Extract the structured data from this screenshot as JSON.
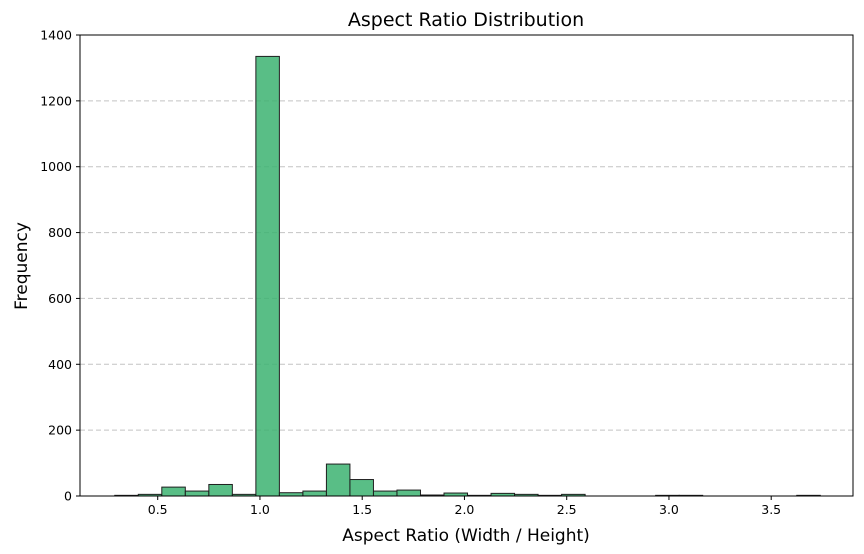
{
  "chart_data": {
    "type": "bar",
    "title": "Aspect Ratio Distribution",
    "xlabel": "Aspect Ratio (Width / Height)",
    "ylabel": "Frequency",
    "xlim": [
      0.12,
      3.9
    ],
    "ylim": [
      0,
      1400
    ],
    "xticks": [
      0.5,
      1.0,
      1.5,
      2.0,
      2.5,
      3.0,
      3.5
    ],
    "xtick_labels": [
      "0.5",
      "1.0",
      "1.5",
      "2.0",
      "2.5",
      "3.0",
      "3.5"
    ],
    "yticks": [
      0,
      200,
      400,
      600,
      800,
      1000,
      1200,
      1400
    ],
    "ytick_labels": [
      "0",
      "200",
      "400",
      "600",
      "800",
      "1000",
      "1200",
      "1400"
    ],
    "grid": "y dashed",
    "bar_color": "#3cb371",
    "bar_edge_color": "#1f1f1f",
    "bins": [
      {
        "start": 0.29,
        "end": 0.405,
        "count": 2
      },
      {
        "start": 0.405,
        "end": 0.52,
        "count": 5
      },
      {
        "start": 0.52,
        "end": 0.635,
        "count": 27
      },
      {
        "start": 0.635,
        "end": 0.75,
        "count": 15
      },
      {
        "start": 0.75,
        "end": 0.865,
        "count": 35
      },
      {
        "start": 0.865,
        "end": 0.98,
        "count": 5
      },
      {
        "start": 0.98,
        "end": 1.095,
        "count": 1335
      },
      {
        "start": 1.095,
        "end": 1.21,
        "count": 10
      },
      {
        "start": 1.21,
        "end": 1.325,
        "count": 15
      },
      {
        "start": 1.325,
        "end": 1.44,
        "count": 97
      },
      {
        "start": 1.44,
        "end": 1.555,
        "count": 50
      },
      {
        "start": 1.555,
        "end": 1.67,
        "count": 15
      },
      {
        "start": 1.67,
        "end": 1.785,
        "count": 18
      },
      {
        "start": 1.785,
        "end": 1.9,
        "count": 3
      },
      {
        "start": 1.9,
        "end": 2.015,
        "count": 9
      },
      {
        "start": 2.015,
        "end": 2.13,
        "count": 2
      },
      {
        "start": 2.13,
        "end": 2.245,
        "count": 8
      },
      {
        "start": 2.245,
        "end": 2.36,
        "count": 5
      },
      {
        "start": 2.36,
        "end": 2.475,
        "count": 2
      },
      {
        "start": 2.475,
        "end": 2.59,
        "count": 5
      },
      {
        "start": 2.59,
        "end": 2.705,
        "count": 0
      },
      {
        "start": 2.705,
        "end": 2.82,
        "count": 0
      },
      {
        "start": 2.82,
        "end": 2.935,
        "count": 0
      },
      {
        "start": 2.935,
        "end": 3.05,
        "count": 2
      },
      {
        "start": 3.05,
        "end": 3.165,
        "count": 2
      },
      {
        "start": 3.165,
        "end": 3.28,
        "count": 0
      },
      {
        "start": 3.28,
        "end": 3.395,
        "count": 0
      },
      {
        "start": 3.395,
        "end": 3.51,
        "count": 0
      },
      {
        "start": 3.51,
        "end": 3.625,
        "count": 0
      },
      {
        "start": 3.625,
        "end": 3.74,
        "count": 2
      }
    ]
  }
}
